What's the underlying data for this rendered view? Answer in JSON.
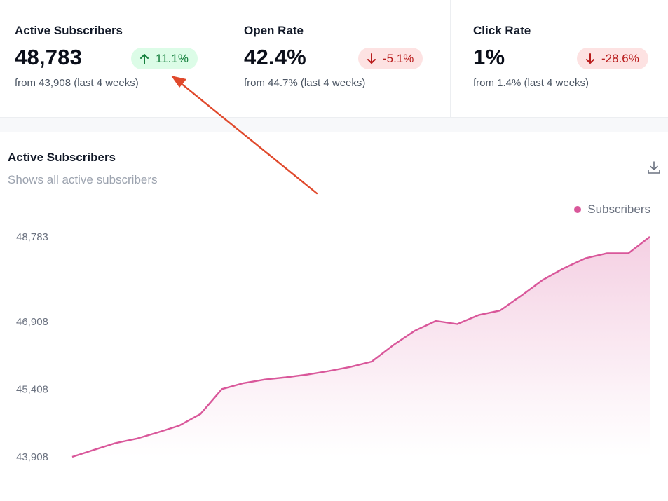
{
  "colors": {
    "accent": "#d9579a",
    "positive": "#15803d",
    "negative": "#b91c1c",
    "annotation": "#e0492c"
  },
  "stats": [
    {
      "label": "Active Subscribers",
      "value": "48,783",
      "change": "11.1%",
      "direction": "up",
      "sub": "from 43,908 (last 4 weeks)"
    },
    {
      "label": "Open Rate",
      "value": "42.4%",
      "change": "-5.1%",
      "direction": "down",
      "sub": "from 44.7% (last 4 weeks)"
    },
    {
      "label": "Click Rate",
      "value": "1%",
      "change": "-28.6%",
      "direction": "down",
      "sub": "from 1.4% (last 4 weeks)"
    }
  ],
  "chart": {
    "title": "Active Subscribers",
    "subtitle": "Shows all active subscribers",
    "download_icon": "download-icon"
  },
  "chart_data": {
    "type": "area",
    "title": "Active Subscribers",
    "series": [
      {
        "name": "Subscribers",
        "color": "#d9579a",
        "values": [
          43908,
          44060,
          44210,
          44310,
          44450,
          44600,
          44860,
          45410,
          45540,
          45620,
          45670,
          45730,
          45810,
          45900,
          46020,
          46380,
          46700,
          46920,
          46850,
          47050,
          47150,
          47480,
          47830,
          48090,
          48310,
          48420,
          48420,
          48783
        ]
      }
    ],
    "yticks": [
      "43,908",
      "45,408",
      "46,908",
      "48,783"
    ],
    "ytick_values": [
      43908,
      45408,
      46908,
      48783
    ],
    "ylim": [
      43908,
      48783
    ],
    "legend": "top-right",
    "grid": false
  }
}
